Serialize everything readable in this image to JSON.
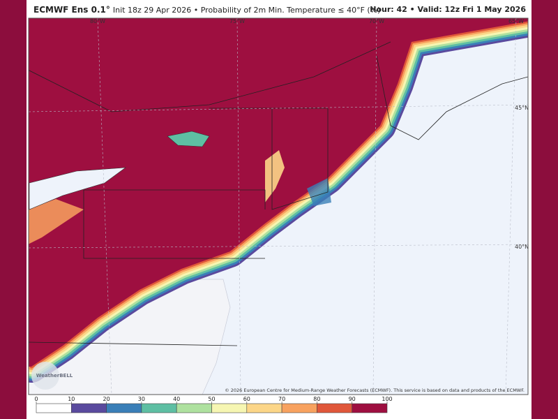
{
  "header": {
    "model": "ECMWF Ens 0.1°",
    "subtitle": "Init 18z 29 Apr 2026 • Probability of 2m Min. Temperature ≤ 40°F (%)",
    "valid": "Hour: 42 • Valid: 12z Fri 1 May 2026"
  },
  "map": {
    "longitude_labels": [
      "80°W",
      "75°W",
      "70°W",
      "65°W"
    ],
    "latitude_labels": [
      "45°N",
      "40°N"
    ],
    "copyright": "© 2026 European Centre for Medium-Range Weather Forecasts (ECMWF). This service is based on data and products of the ECMWF.",
    "logo": "WeatherBELL"
  },
  "colorbar": {
    "ticks": [
      0,
      10,
      20,
      30,
      40,
      50,
      60,
      70,
      80,
      90,
      100
    ],
    "colors": [
      "#ffffff",
      "#5a4a9e",
      "#3a7fb8",
      "#5ebfa3",
      "#aee19f",
      "#f6f6b2",
      "#fcd688",
      "#f8a25f",
      "#e0573a",
      "#9e0f40"
    ]
  }
}
